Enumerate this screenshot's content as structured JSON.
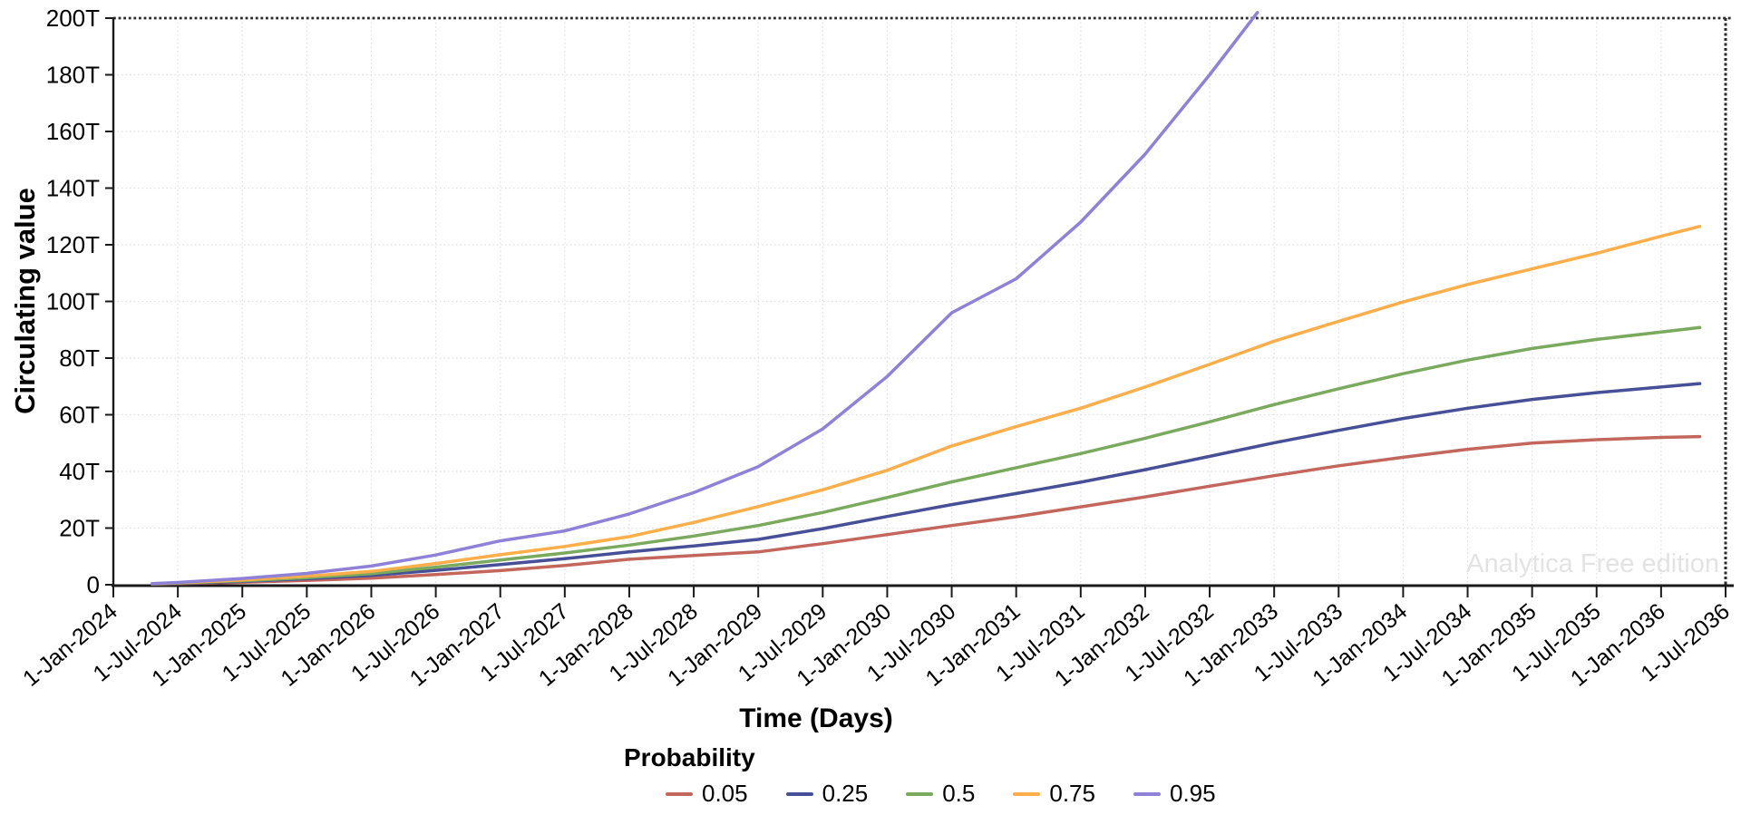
{
  "watermark": "Analytica Free edition",
  "chart_data": {
    "type": "line",
    "title": "",
    "xlabel": "Time (Days)",
    "ylabel": "Circulating value",
    "legend_title": "Probability",
    "legend_position": "bottom",
    "grid": true,
    "x_axis": {
      "min": 2024.0,
      "max": 2036.5,
      "tick_labels": [
        "1-Jan-2024",
        "1-Jul-2024",
        "1-Jan-2025",
        "1-Jul-2025",
        "1-Jan-2026",
        "1-Jul-2026",
        "1-Jan-2027",
        "1-Jul-2027",
        "1-Jan-2028",
        "1-Jul-2028",
        "1-Jan-2029",
        "1-Jul-2029",
        "1-Jan-2030",
        "1-Jul-2030",
        "1-Jan-2031",
        "1-Jul-2031",
        "1-Jan-2032",
        "1-Jul-2032",
        "1-Jan-2033",
        "1-Jul-2033",
        "1-Jan-2034",
        "1-Jul-2034",
        "1-Jan-2035",
        "1-Jul-2035",
        "1-Jan-2036",
        "1-Jul-2036"
      ]
    },
    "y_axis": {
      "min": 0,
      "max": 200,
      "tick_step": 20,
      "unit": "T",
      "tick_labels": [
        "0",
        "20T",
        "40T",
        "60T",
        "80T",
        "100T",
        "120T",
        "140T",
        "160T",
        "180T",
        "200T"
      ]
    },
    "series": [
      {
        "name": "0.05",
        "color": "#c3675d",
        "x": [
          2024.3,
          2024.5,
          2025.0,
          2025.5,
          2026.0,
          2026.5,
          2027.0,
          2027.5,
          2028.0,
          2028.5,
          2029.0,
          2029.5,
          2030.0,
          2030.5,
          2031.0,
          2031.5,
          2032.0,
          2032.5,
          2033.0,
          2033.5,
          2034.0,
          2034.5,
          2035.0,
          2035.5,
          2036.0,
          2036.3
        ],
        "values": [
          0.2,
          0.4,
          0.9,
          1.5,
          2.3,
          3.6,
          5.0,
          6.8,
          9.0,
          10.3,
          11.6,
          14.5,
          17.7,
          20.9,
          24.0,
          27.5,
          31.0,
          34.8,
          38.5,
          42.0,
          45.0,
          47.8,
          50.0,
          51.2,
          52.0,
          52.3
        ]
      },
      {
        "name": "0.25",
        "color": "#474f97",
        "x": [
          2024.3,
          2024.5,
          2025.0,
          2025.5,
          2026.0,
          2026.5,
          2027.0,
          2027.5,
          2028.0,
          2028.5,
          2029.0,
          2029.5,
          2030.0,
          2030.5,
          2031.0,
          2031.5,
          2032.0,
          2032.5,
          2033.0,
          2033.5,
          2034.0,
          2034.5,
          2035.0,
          2035.5,
          2036.0,
          2036.3
        ],
        "values": [
          0.25,
          0.5,
          1.2,
          2.1,
          3.3,
          5.1,
          7.1,
          9.2,
          11.6,
          13.7,
          16.0,
          19.8,
          24.1,
          28.3,
          32.2,
          36.2,
          40.6,
          45.3,
          50.1,
          54.5,
          58.7,
          62.3,
          65.4,
          67.8,
          69.8,
          71.0
        ]
      },
      {
        "name": "0.5",
        "color": "#7aaa5d",
        "x": [
          2024.3,
          2024.5,
          2025.0,
          2025.5,
          2026.0,
          2026.5,
          2027.0,
          2027.5,
          2028.0,
          2028.5,
          2029.0,
          2029.5,
          2030.0,
          2030.5,
          2031.0,
          2031.5,
          2032.0,
          2032.5,
          2033.0,
          2033.5,
          2034.0,
          2034.5,
          2035.0,
          2035.5,
          2036.0,
          2036.3
        ],
        "values": [
          0.3,
          0.6,
          1.4,
          2.5,
          3.9,
          6.2,
          8.7,
          11.2,
          14.0,
          17.2,
          20.9,
          25.5,
          30.8,
          36.3,
          41.3,
          46.3,
          51.7,
          57.5,
          63.6,
          69.2,
          74.5,
          79.3,
          83.4,
          86.6,
          89.2,
          90.8
        ]
      },
      {
        "name": "0.75",
        "color": "#fbae49",
        "x": [
          2024.3,
          2024.5,
          2025.0,
          2025.5,
          2026.0,
          2026.5,
          2027.0,
          2027.5,
          2028.0,
          2028.5,
          2029.0,
          2029.5,
          2030.0,
          2030.5,
          2031.0,
          2031.5,
          2032.0,
          2032.5,
          2033.0,
          2033.5,
          2034.0,
          2034.5,
          2035.0,
          2035.5,
          2036.0,
          2036.3
        ],
        "values": [
          0.35,
          0.7,
          1.7,
          3.0,
          4.7,
          7.5,
          10.6,
          13.5,
          17.0,
          22.0,
          27.6,
          33.5,
          40.4,
          49.0,
          55.8,
          62.3,
          69.8,
          77.8,
          86.0,
          93.0,
          99.8,
          106.0,
          111.5,
          117.0,
          123.0,
          126.5
        ]
      },
      {
        "name": "0.95",
        "color": "#8f81d8",
        "x": [
          2024.3,
          2024.5,
          2025.0,
          2025.5,
          2026.0,
          2026.5,
          2027.0,
          2027.5,
          2028.0,
          2028.5,
          2029.0,
          2029.5,
          2030.0,
          2030.5,
          2031.0,
          2031.5,
          2032.0,
          2032.5,
          2032.87
        ],
        "values": [
          0.4,
          0.8,
          2.2,
          4.0,
          6.6,
          10.5,
          15.5,
          19.0,
          25.0,
          32.5,
          41.7,
          55.0,
          73.5,
          96.0,
          108.0,
          128.0,
          152.0,
          180.0,
          202.0
        ]
      }
    ]
  }
}
